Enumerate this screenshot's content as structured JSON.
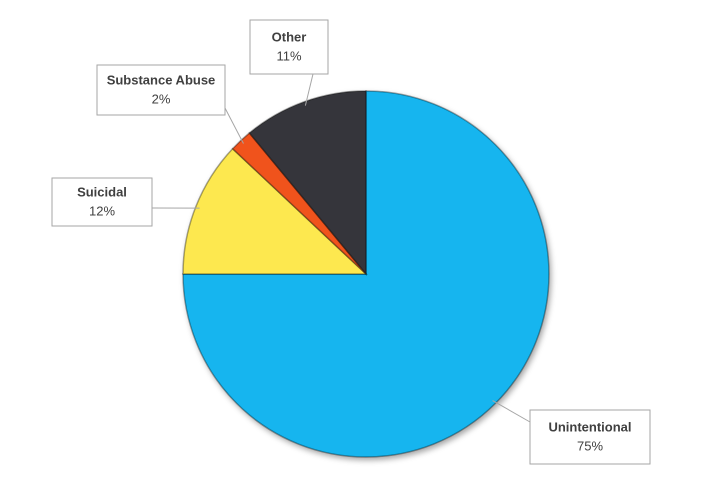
{
  "chart_data": {
    "type": "pie",
    "categories": [
      "Unintentional",
      "Suicidal",
      "Substance Abuse",
      "Other"
    ],
    "values": [
      75,
      12,
      2,
      11
    ],
    "value_labels": [
      "75%",
      "12%",
      "2%",
      "11%"
    ],
    "colors": [
      "#12b5ef",
      "#fde84f",
      "#f0531c",
      "#35363a"
    ],
    "start_angle": 0,
    "direction": "clockwise"
  }
}
